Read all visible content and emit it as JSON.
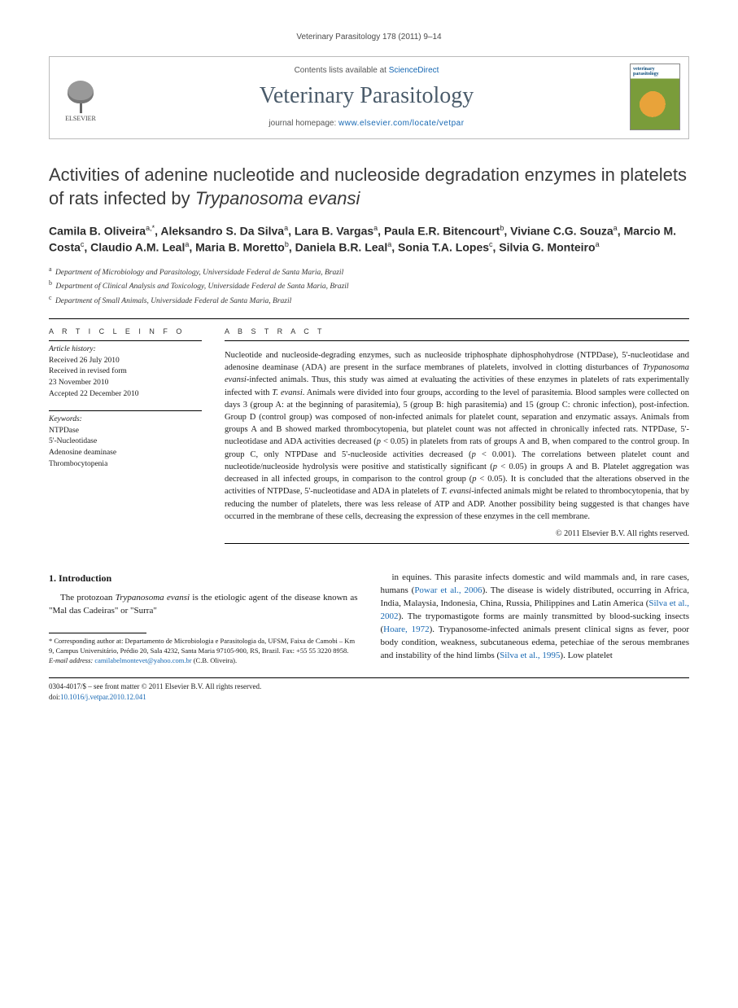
{
  "running_head": "Veterinary Parasitology 178 (2011) 9–14",
  "header": {
    "publisher": "ELSEVIER",
    "contents_prefix": "Contents lists available at ",
    "contents_link": "ScienceDirect",
    "journal": "Veterinary Parasitology",
    "homepage_prefix": "journal homepage: ",
    "homepage_url": "www.elsevier.com/locate/vetpar",
    "cover_label": "veterinary parasitology"
  },
  "title_a": "Activities of adenine nucleotide and nucleoside degradation enzymes in platelets of rats infected by ",
  "title_ital": "Trypanosoma evansi",
  "authors_html": "Camila B. Oliveira<sup>a,*</sup>, Aleksandro S. Da Silva<sup>a</sup>, Lara B. Vargas<sup>a</sup>, Paula E.R. Bitencourt<sup>b</sup>, Viviane C.G. Souza<sup>a</sup>, Marcio M. Costa<sup>c</sup>, Claudio A.M. Leal<sup>a</sup>, Maria B. Moretto<sup>b</sup>, Daniela B.R. Leal<sup>a</sup>, Sonia T.A. Lopes<sup>c</sup>, Silvia G. Monteiro<sup>a</sup>",
  "affiliations": [
    {
      "sup": "a",
      "text": "Department of Microbiology and Parasitology, Universidade Federal de Santa Maria, Brazil"
    },
    {
      "sup": "b",
      "text": "Department of Clinical Analysis and Toxicology, Universidade Federal de Santa Maria, Brazil"
    },
    {
      "sup": "c",
      "text": "Department of Small Animals, Universidade Federal de Santa Maria, Brazil"
    }
  ],
  "info": {
    "head": "A R T I C L E   I N F O",
    "history_label": "Article history:",
    "history": [
      "Received 26 July 2010",
      "Received in revised form",
      "23 November 2010",
      "Accepted 22 December 2010"
    ],
    "keywords_label": "Keywords:",
    "keywords": [
      "NTPDase",
      "5'-Nucleotidase",
      "Adenosine deaminase",
      "Thrombocytopenia"
    ]
  },
  "abstract": {
    "head": "A B S T R A C T",
    "text": "Nucleotide and nucleoside-degrading enzymes, such as nucleoside triphosphate diphosphohydrose (NTPDase), 5'-nucleotidase and adenosine deaminase (ADA) are present in the surface membranes of platelets, involved in clotting disturbances of Trypanosoma evansi-infected animals. Thus, this study was aimed at evaluating the activities of these enzymes in platelets of rats experimentally infected with T. evansi. Animals were divided into four groups, according to the level of parasitemia. Blood samples were collected on days 3 (group A: at the beginning of parasitemia), 5 (group B: high parasitemia) and 15 (group C: chronic infection), post-infection. Group D (control group) was composed of non-infected animals for platelet count, separation and enzymatic assays. Animals from groups A and B showed marked thrombocytopenia, but platelet count was not affected in chronically infected rats. NTPDase, 5'-nucleotidase and ADA activities decreased (p < 0.05) in platelets from rats of groups A and B, when compared to the control group. In group C, only NTPDase and 5'-nucleoside activities decreased (p < 0.001). The correlations between platelet count and nucleotide/nucleoside hydrolysis were positive and statistically significant (p < 0.05) in groups A and B. Platelet aggregation was decreased in all infected groups, in comparison to the control group (p < 0.05). It is concluded that the alterations observed in the activities of NTPDase, 5'-nucleotidase and ADA in platelets of T. evansi-infected animals might be related to thrombocytopenia, that by reducing the number of platelets, there was less release of ATP and ADP. Another possibility being suggested is that changes have occurred in the membrane of these cells, decreasing the expression of these enzymes in the cell membrane.",
    "copyright": "© 2011 Elsevier B.V. All rights reserved."
  },
  "body": {
    "section_number": "1.",
    "section_title": "Introduction",
    "left_para": "The protozoan Trypanosoma evansi is the etiologic agent of the disease known as \"Mal das Cadeiras\" or \"Surra\"",
    "right_para_1": "in equines. This parasite infects domestic and wild mammals and, in rare cases, humans (",
    "right_link_1": "Powar et al., 2006",
    "right_para_2": "). The disease is widely distributed, occurring in Africa, India, Malaysia, Indonesia, China, Russia, Philippines and Latin America (",
    "right_link_2": "Silva et al., 2002",
    "right_para_3": "). The trypomastigote forms are mainly transmitted by blood-sucking insects (",
    "right_link_3": "Hoare, 1972",
    "right_para_4": "). Trypanosome-infected animals present clinical signs as fever, poor body condition, weakness, subcutaneous edema, petechiae of the serous membranes and instability of the hind limbs (",
    "right_link_4": "Silva et al., 1995",
    "right_para_5": "). Low platelet"
  },
  "footnote": {
    "corr": "* Corresponding author at: Departamento de Microbiologia e Parasitologia da, UFSM, Faixa de Camobi – Km 9, Campus Universitário, Prédio 20, Sala 4232, Santa Maria 97105-900, RS, Brazil. Fax: +55 55 3220 8958.",
    "email_label": "E-mail address: ",
    "email": "camilabelmontevet@yahoo.com.br",
    "email_suffix": " (C.B. Oliveira)."
  },
  "doi": {
    "line1": "0304-4017/$ – see front matter © 2011 Elsevier B.V. All rights reserved.",
    "line2_prefix": "doi:",
    "line2_link": "10.1016/j.vetpar.2010.12.041"
  },
  "colors": {
    "link": "#1768b3",
    "journal_title": "#4a5b6a",
    "cover_green": "#7a9c3a",
    "cover_orange": "#e8a33a"
  }
}
